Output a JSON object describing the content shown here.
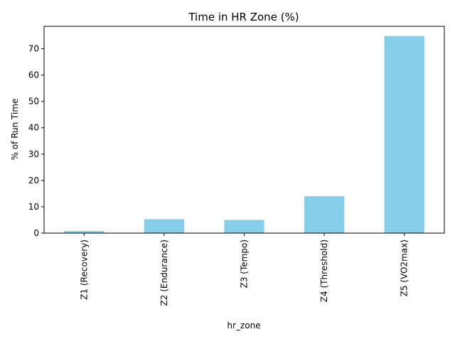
{
  "chart_data": {
    "type": "bar",
    "title": "Time in HR Zone (%)",
    "xlabel": "hr_zone",
    "ylabel": "% of Run Time",
    "categories": [
      "Z1 (Recovery)",
      "Z2 (Endurance)",
      "Z3 (Tempo)",
      "Z4 (Threshold)",
      "Z5 (VO2max)"
    ],
    "values": [
      0.8,
      5.3,
      5.0,
      14.0,
      74.8
    ],
    "ylim": [
      0,
      78.5
    ],
    "yticks": [
      0,
      10,
      20,
      30,
      40,
      50,
      60,
      70
    ],
    "bar_color": "#87ceeb",
    "grid": false,
    "legend": "none"
  }
}
